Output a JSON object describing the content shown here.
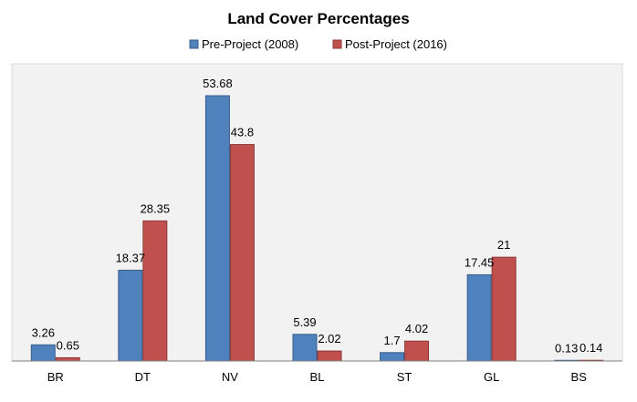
{
  "chart_data": {
    "type": "bar",
    "title": "Land Cover Percentages",
    "xlabel": "",
    "ylabel": "",
    "categories": [
      "BR",
      "DT",
      "NV",
      "BL",
      "ST",
      "GL",
      "BS"
    ],
    "series": [
      {
        "name": "Pre-Project (2008)",
        "color": "#4F81BD",
        "stroke": "#385D8A",
        "values": [
          3.26,
          18.37,
          53.68,
          5.39,
          1.7,
          17.45,
          0.13
        ]
      },
      {
        "name": "Post-Project (2016)",
        "color": "#C0504D",
        "stroke": "#8C3836",
        "values": [
          0.65,
          28.35,
          43.8,
          2.02,
          4.02,
          21,
          0.14
        ]
      }
    ],
    "ylim": [
      0,
      60
    ],
    "grid": false,
    "legend": "top",
    "plot_background": "#F2F2F2"
  }
}
